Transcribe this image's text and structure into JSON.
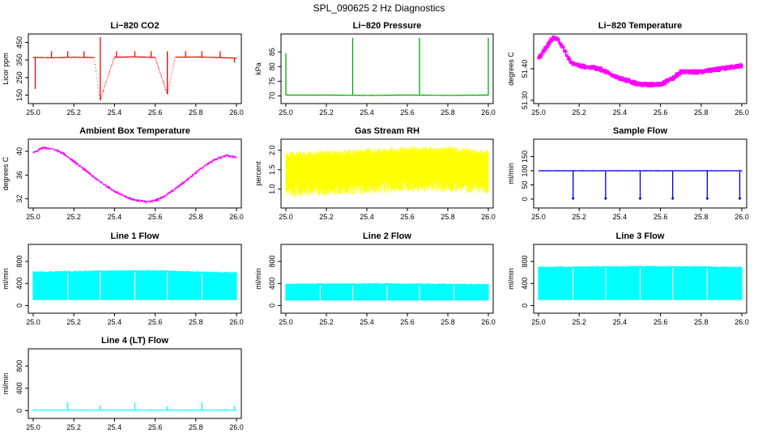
{
  "page_title": "SPL_090625  2 Hz Diagnostics",
  "chart_data": [
    {
      "type": "line",
      "title": "Li−820 CO2",
      "ylabel": "Licor ppm",
      "xlim": [
        25.0,
        26.0
      ],
      "ylim": [
        120,
        480
      ],
      "yticks": [
        "150",
        "250",
        "350",
        "450"
      ],
      "ytick_values": [
        150,
        250,
        350,
        450
      ],
      "color": "#ff0000",
      "series": [
        {
          "x": [
            25.0,
            25.1,
            25.2,
            25.3,
            25.33,
            25.4,
            25.5,
            25.6,
            25.66,
            25.7,
            25.8,
            25.9,
            26.0
          ],
          "values": [
            365,
            363,
            366,
            364,
            120,
            366,
            368,
            365,
            155,
            366,
            367,
            365,
            360
          ],
          "spikes": [
            [
              25.01,
              185
            ],
            [
              25.09,
              400
            ],
            [
              25.17,
              400
            ],
            [
              25.25,
              400
            ],
            [
              25.33,
              480
            ],
            [
              25.41,
              400
            ],
            [
              25.5,
              400
            ],
            [
              25.58,
              400
            ],
            [
              25.66,
              400
            ],
            [
              25.75,
              400
            ],
            [
              25.83,
              400
            ],
            [
              25.92,
              400
            ],
            [
              25.99,
              335
            ]
          ]
        }
      ]
    },
    {
      "type": "line",
      "title": "Li−820 Pressure",
      "ylabel": "kPa",
      "xlim": [
        25.0,
        26.0
      ],
      "ylim": [
        68.5,
        90
      ],
      "yticks": [
        "70",
        "75",
        "80",
        "85"
      ],
      "ytick_values": [
        70,
        75,
        80,
        85
      ],
      "color": "#00aa00",
      "series": [
        {
          "x": [
            25.0,
            25.2,
            25.4,
            25.6,
            25.8,
            26.0
          ],
          "values": [
            70.3,
            70.3,
            70.2,
            70.3,
            70.2,
            70.3
          ],
          "spikes": [
            [
              25.0,
              84.5
            ],
            [
              25.33,
              89.8
            ],
            [
              25.66,
              89.8
            ],
            [
              26.0,
              89.8
            ]
          ]
        }
      ]
    },
    {
      "type": "line",
      "title": "Li−820 Temperature",
      "ylabel": "degrees C",
      "xlim": [
        25.0,
        26.0
      ],
      "ylim": [
        51.3,
        51.5
      ],
      "yticks": [
        "51.30",
        "51.40"
      ],
      "ytick_values": [
        51.3,
        51.4
      ],
      "color": "#ff00ff",
      "series": [
        {
          "x": [
            25.0,
            25.02,
            25.04,
            25.06,
            25.08,
            25.1,
            25.12,
            25.14,
            25.16,
            25.2,
            25.3,
            25.4,
            25.5,
            25.6,
            25.66,
            25.7,
            25.8,
            25.9,
            26.0
          ],
          "values": [
            51.43,
            51.45,
            51.47,
            51.49,
            51.5,
            51.49,
            51.47,
            51.44,
            51.42,
            51.41,
            51.4,
            51.37,
            51.35,
            51.35,
            51.37,
            51.39,
            51.39,
            51.4,
            51.41
          ]
        }
      ]
    },
    {
      "type": "line",
      "title": "Ambient Box Temperature",
      "ylabel": "degrees C",
      "xlim": [
        25.0,
        26.0
      ],
      "ylim": [
        31,
        41.5
      ],
      "yticks": [
        "32",
        "36",
        "40"
      ],
      "ytick_values": [
        32,
        36,
        40
      ],
      "color": "#ff00ff",
      "series": [
        {
          "x": [
            25.0,
            25.05,
            25.1,
            25.15,
            25.2,
            25.25,
            25.3,
            25.35,
            25.4,
            25.45,
            25.5,
            25.55,
            25.6,
            25.65,
            25.7,
            25.75,
            25.8,
            25.85,
            25.9,
            25.95,
            26.0
          ],
          "values": [
            39.8,
            40.6,
            40.4,
            39.6,
            38.3,
            37.0,
            35.6,
            34.4,
            33.3,
            32.4,
            31.8,
            31.5,
            31.7,
            32.5,
            33.7,
            35.0,
            36.4,
            37.7,
            38.7,
            39.3,
            39.0
          ]
        }
      ]
    },
    {
      "type": "line",
      "title": "Gas Stream RH",
      "ylabel": "percent",
      "xlim": [
        25.0,
        26.0
      ],
      "ylim": [
        0.6,
        2.2
      ],
      "yticks": [
        "1.0",
        "1.5",
        "2.0"
      ],
      "ytick_values": [
        1.0,
        1.5,
        2.0
      ],
      "color": "#ffff00",
      "series": [
        {
          "x": [
            25.0,
            25.2,
            25.4,
            25.6,
            25.8,
            26.0
          ],
          "values": [
            1.45,
            1.5,
            1.55,
            1.6,
            1.6,
            1.55
          ],
          "range_lo": [
            0.95,
            1.0,
            1.05,
            1.1,
            1.1,
            1.05
          ],
          "range_hi": [
            1.85,
            1.9,
            1.95,
            2.0,
            2.0,
            1.9
          ]
        }
      ]
    },
    {
      "type": "line",
      "title": "Sample Flow",
      "ylabel": "ml/min",
      "xlim": [
        25.0,
        26.0
      ],
      "ylim": [
        -20,
        200
      ],
      "yticks": [
        "0",
        "50",
        "100",
        "150"
      ],
      "ytick_values": [
        0,
        50,
        100,
        150
      ],
      "color": "#0000dd",
      "series": [
        {
          "x": [
            25.0,
            25.2,
            25.4,
            25.6,
            25.8,
            26.0
          ],
          "values": [
            100,
            100,
            100,
            100,
            100,
            100
          ],
          "dips": [
            [
              25.17,
              2
            ],
            [
              25.33,
              2
            ],
            [
              25.5,
              2
            ],
            [
              25.66,
              2
            ],
            [
              25.83,
              2
            ],
            [
              25.99,
              2
            ]
          ]
        }
      ]
    },
    {
      "type": "area",
      "title": "Line 1 Flow",
      "ylabel": "ml/min",
      "xlim": [
        25.0,
        26.0
      ],
      "ylim": [
        -80,
        1050
      ],
      "yticks": [
        "0",
        "400",
        "800"
      ],
      "ytick_values": [
        0,
        400,
        800
      ],
      "color": "#00ffff",
      "series": [
        {
          "x": [
            25.0,
            25.17,
            25.33,
            25.5,
            25.66,
            25.83,
            26.0
          ],
          "values": [
            610,
            620,
            630,
            635,
            630,
            610,
            600
          ],
          "baseline": 100,
          "gaps": [
            25.17,
            25.33,
            25.5,
            25.66,
            25.83
          ]
        }
      ]
    },
    {
      "type": "area",
      "title": "Line 2 Flow",
      "ylabel": "ml/min",
      "xlim": [
        25.0,
        26.0
      ],
      "ylim": [
        -80,
        1050
      ],
      "yticks": [
        "0",
        "400",
        "800"
      ],
      "ytick_values": [
        0,
        400,
        800
      ],
      "color": "#00ffff",
      "series": [
        {
          "x": [
            25.0,
            25.17,
            25.33,
            25.5,
            25.66,
            25.83,
            26.0
          ],
          "values": [
            390,
            395,
            395,
            400,
            395,
            390,
            385
          ],
          "baseline": 90,
          "gaps": [
            25.17,
            25.33,
            25.5,
            25.66,
            25.83
          ]
        }
      ]
    },
    {
      "type": "area",
      "title": "Line 3 Flow",
      "ylabel": "ml/min",
      "xlim": [
        25.0,
        26.0
      ],
      "ylim": [
        -80,
        1050
      ],
      "yticks": [
        "0",
        "400",
        "800"
      ],
      "ytick_values": [
        0,
        400,
        800
      ],
      "color": "#00ffff",
      "series": [
        {
          "x": [
            25.0,
            25.17,
            25.33,
            25.5,
            25.66,
            25.83,
            26.0
          ],
          "values": [
            700,
            705,
            710,
            710,
            710,
            705,
            700
          ],
          "baseline": 100,
          "gaps": [
            25.17,
            25.33,
            25.5,
            25.66,
            25.83
          ]
        }
      ]
    },
    {
      "type": "line",
      "title": "Line 4 (LT) Flow",
      "ylabel": "ml/min",
      "xlim": [
        25.0,
        26.0
      ],
      "ylim": [
        -80,
        1050
      ],
      "yticks": [
        "0",
        "400",
        "800"
      ],
      "ytick_values": [
        0,
        400,
        800
      ],
      "color": "#00ffff",
      "series": [
        {
          "x": [
            25.0,
            25.2,
            25.4,
            25.6,
            25.8,
            26.0
          ],
          "values": [
            10,
            10,
            10,
            10,
            10,
            10
          ],
          "spikes": [
            [
              25.17,
              150
            ],
            [
              25.33,
              90
            ],
            [
              25.5,
              150
            ],
            [
              25.66,
              80
            ],
            [
              25.83,
              150
            ],
            [
              25.99,
              80
            ]
          ]
        }
      ]
    }
  ],
  "xticks": [
    "25.0",
    "25.2",
    "25.4",
    "25.6",
    "25.8",
    "26.0"
  ],
  "xtick_values": [
    25.0,
    25.2,
    25.4,
    25.6,
    25.8,
    26.0
  ]
}
